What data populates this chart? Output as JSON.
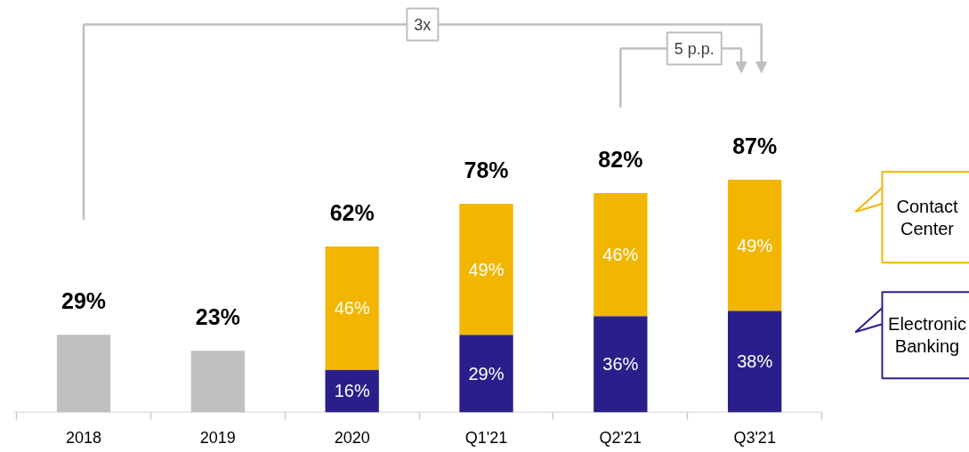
{
  "chart_data": {
    "type": "bar",
    "stacked": true,
    "categories": [
      "2018",
      "2019",
      "2020",
      "Q1'21",
      "Q2'21",
      "Q3'21"
    ],
    "series": [
      {
        "color": "#c0c0c0",
        "values": [
          29,
          23,
          null,
          null,
          null,
          null
        ]
      },
      {
        "name": "Electronic Banking",
        "color": "#2a1f8a",
        "values": [
          null,
          null,
          16,
          29,
          36,
          38
        ],
        "value_labels": [
          null,
          null,
          "16%",
          "29%",
          "36%",
          "38%"
        ]
      },
      {
        "name": "Contact Center",
        "color": "#f2b600",
        "values": [
          null,
          null,
          46,
          49,
          46,
          49
        ],
        "value_labels": [
          null,
          null,
          "46%",
          "49%",
          "46%",
          "49%"
        ]
      }
    ],
    "totals": [
      "29%",
      "23%",
      "62%",
      "78%",
      "82%",
      "87%"
    ],
    "annotations": [
      "3x",
      "5 p.p."
    ],
    "legend": "right"
  }
}
